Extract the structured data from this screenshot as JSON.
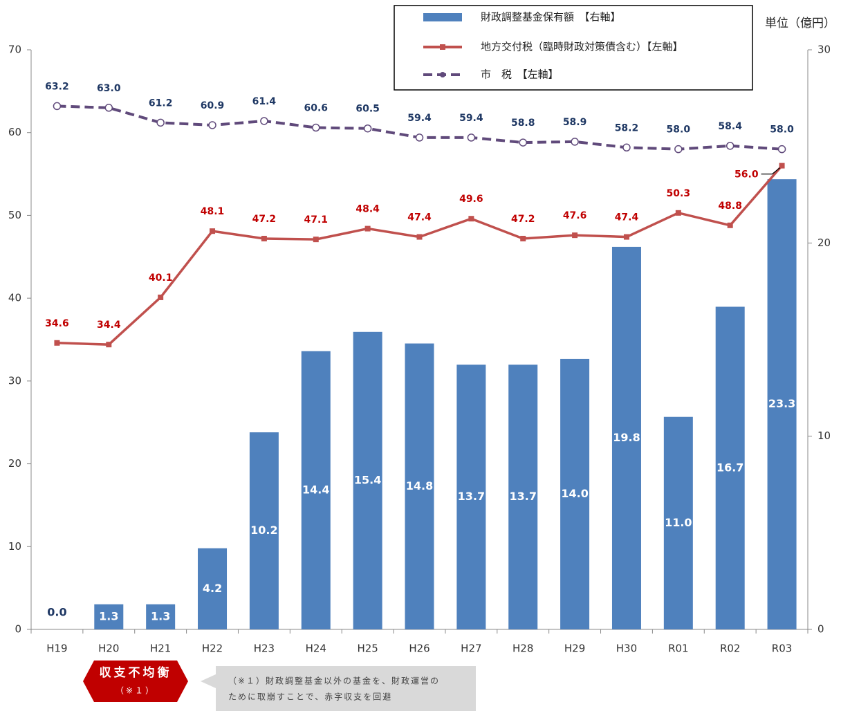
{
  "chart_data": {
    "type": "bar",
    "unit_label": "単位（億円）",
    "categories": [
      "H19",
      "H20",
      "H21",
      "H22",
      "H23",
      "H24",
      "H25",
      "H26",
      "H27",
      "H28",
      "H29",
      "H30",
      "R01",
      "R02",
      "R03"
    ],
    "ylim": [
      0,
      70
    ],
    "yticks": [
      0,
      10,
      20,
      30,
      40,
      50,
      60,
      70
    ],
    "y2lim": [
      0,
      30
    ],
    "y2ticks": [
      0,
      10,
      20,
      30
    ],
    "legend": "top-right",
    "series": [
      {
        "name": "財政調整基金保有額　【右軸】",
        "type": "bar",
        "axis": "y2",
        "color": "#4f81bd",
        "values": [
          0,
          1.3,
          1.3,
          4.2,
          10.2,
          14.4,
          15.4,
          14.8,
          13.7,
          13.7,
          14,
          19.8,
          11,
          16.7,
          23.3
        ],
        "value_labels": [
          "0.0",
          "1.3",
          "1.3",
          "4.2",
          "10.2",
          "14.4",
          "15.4",
          "14.8",
          "13.7",
          "13.7",
          "14.0",
          "19.8",
          "11.0",
          "16.7",
          "23.3"
        ]
      },
      {
        "name": "地方交付税（臨時財政対策債含む）【左軸】",
        "type": "line",
        "axis": "y",
        "color": "#c0504d",
        "values": [
          34.6,
          34.4,
          40.1,
          48.1,
          47.2,
          47.1,
          48.4,
          47.4,
          49.6,
          47.2,
          47.6,
          47.4,
          50.3,
          48.8,
          56
        ],
        "value_labels": [
          "34.6",
          "34.4",
          "40.1",
          "48.1",
          "47.2",
          "47.1",
          "48.4",
          "47.4",
          "49.6",
          "47.2",
          "47.6",
          "47.4",
          "50.3",
          "48.8",
          "56.0"
        ]
      },
      {
        "name": "市　税　【左軸】",
        "type": "line",
        "dashed": true,
        "axis": "y",
        "color": "#604a7b",
        "values": [
          63.2,
          63,
          61.2,
          60.9,
          61.4,
          60.6,
          60.5,
          59.4,
          59.4,
          58.8,
          58.9,
          58.2,
          58,
          58.4,
          58
        ],
        "value_labels": [
          "63.2",
          "63.0",
          "61.2",
          "60.9",
          "61.4",
          "60.6",
          "60.5",
          "59.4",
          "59.4",
          "58.8",
          "58.9",
          "58.2",
          "58.0",
          "58.4",
          "58.0"
        ]
      }
    ],
    "annotations": {
      "badge": [
        "収支不均衡",
        "（※１）"
      ],
      "note": [
        "（※１）財政調整基金以外の基金を、財政運営の",
        "ために取崩すことで、赤字収支を回避"
      ]
    }
  }
}
